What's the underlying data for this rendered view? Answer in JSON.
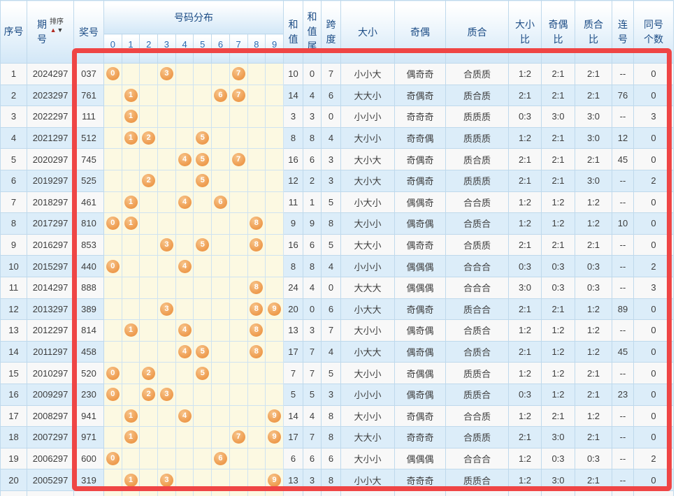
{
  "header": {
    "seq": "序号",
    "period": "期\n号",
    "sort": "排序",
    "sort_up": "▲",
    "sort_down": "▼",
    "prize": "奖号",
    "distribution": "号码分布",
    "digits": [
      "0",
      "1",
      "2",
      "3",
      "4",
      "5",
      "6",
      "7",
      "8",
      "9"
    ],
    "sum": "和\n值",
    "sum_tail": "和\n值\n尾",
    "span": "跨\n度",
    "size": "大小",
    "parity": "奇偶",
    "prime": "质合",
    "size_ratio": "大小\n比",
    "parity_ratio": "奇偶\n比",
    "prime_ratio": "质合\n比",
    "consecutive": "连\n号",
    "same_count": "同号\n个数"
  },
  "colors": {
    "accent_red": "#ef4545",
    "ball_orange": "#efa055",
    "header_blue": "#1c4c85",
    "zebra_blue": "#dcedf9",
    "zebra_white": "#f8f8f8",
    "panel_yellow": "#fcf9e2"
  },
  "rows": [
    {
      "seq": "1",
      "period": "2024297",
      "number": "037",
      "balls": [
        0,
        3,
        7
      ],
      "sum": "10",
      "sum_tail": "0",
      "span": "7",
      "size": "小小大",
      "parity": "偶奇奇",
      "prime": "合质质",
      "size_ratio": "1:2",
      "parity_ratio": "2:1",
      "prime_ratio": "2:1",
      "consecutive": "--",
      "same_count": "0"
    },
    {
      "seq": "2",
      "period": "2023297",
      "number": "761",
      "balls": [
        1,
        6,
        7
      ],
      "sum": "14",
      "sum_tail": "4",
      "span": "6",
      "size": "大大小",
      "parity": "奇偶奇",
      "prime": "质合质",
      "size_ratio": "2:1",
      "parity_ratio": "2:1",
      "prime_ratio": "2:1",
      "consecutive": "76",
      "same_count": "0"
    },
    {
      "seq": "3",
      "period": "2022297",
      "number": "111",
      "balls": [
        1
      ],
      "sum": "3",
      "sum_tail": "3",
      "span": "0",
      "size": "小小小",
      "parity": "奇奇奇",
      "prime": "质质质",
      "size_ratio": "0:3",
      "parity_ratio": "3:0",
      "prime_ratio": "3:0",
      "consecutive": "--",
      "same_count": "3"
    },
    {
      "seq": "4",
      "period": "2021297",
      "number": "512",
      "balls": [
        1,
        2,
        5
      ],
      "sum": "8",
      "sum_tail": "8",
      "span": "4",
      "size": "大小小",
      "parity": "奇奇偶",
      "prime": "质质质",
      "size_ratio": "1:2",
      "parity_ratio": "2:1",
      "prime_ratio": "3:0",
      "consecutive": "12",
      "same_count": "0"
    },
    {
      "seq": "5",
      "period": "2020297",
      "number": "745",
      "balls": [
        4,
        5,
        7
      ],
      "sum": "16",
      "sum_tail": "6",
      "span": "3",
      "size": "大小大",
      "parity": "奇偶奇",
      "prime": "质合质",
      "size_ratio": "2:1",
      "parity_ratio": "2:1",
      "prime_ratio": "2:1",
      "consecutive": "45",
      "same_count": "0"
    },
    {
      "seq": "6",
      "period": "2019297",
      "number": "525",
      "balls": [
        2,
        5
      ],
      "sum": "12",
      "sum_tail": "2",
      "span": "3",
      "size": "大小大",
      "parity": "奇偶奇",
      "prime": "质质质",
      "size_ratio": "2:1",
      "parity_ratio": "2:1",
      "prime_ratio": "3:0",
      "consecutive": "--",
      "same_count": "2"
    },
    {
      "seq": "7",
      "period": "2018297",
      "number": "461",
      "balls": [
        1,
        4,
        6
      ],
      "sum": "11",
      "sum_tail": "1",
      "span": "5",
      "size": "小大小",
      "parity": "偶偶奇",
      "prime": "合合质",
      "size_ratio": "1:2",
      "parity_ratio": "1:2",
      "prime_ratio": "1:2",
      "consecutive": "--",
      "same_count": "0"
    },
    {
      "seq": "8",
      "period": "2017297",
      "number": "810",
      "balls": [
        0,
        1,
        8
      ],
      "sum": "9",
      "sum_tail": "9",
      "span": "8",
      "size": "大小小",
      "parity": "偶奇偶",
      "prime": "合质合",
      "size_ratio": "1:2",
      "parity_ratio": "1:2",
      "prime_ratio": "1:2",
      "consecutive": "10",
      "same_count": "0"
    },
    {
      "seq": "9",
      "period": "2016297",
      "number": "853",
      "balls": [
        3,
        5,
        8
      ],
      "sum": "16",
      "sum_tail": "6",
      "span": "5",
      "size": "大大小",
      "parity": "偶奇奇",
      "prime": "合质质",
      "size_ratio": "2:1",
      "parity_ratio": "2:1",
      "prime_ratio": "2:1",
      "consecutive": "--",
      "same_count": "0"
    },
    {
      "seq": "10",
      "period": "2015297",
      "number": "440",
      "balls": [
        0,
        4
      ],
      "sum": "8",
      "sum_tail": "8",
      "span": "4",
      "size": "小小小",
      "parity": "偶偶偶",
      "prime": "合合合",
      "size_ratio": "0:3",
      "parity_ratio": "0:3",
      "prime_ratio": "0:3",
      "consecutive": "--",
      "same_count": "2"
    },
    {
      "seq": "11",
      "period": "2014297",
      "number": "888",
      "balls": [
        8
      ],
      "sum": "24",
      "sum_tail": "4",
      "span": "0",
      "size": "大大大",
      "parity": "偶偶偶",
      "prime": "合合合",
      "size_ratio": "3:0",
      "parity_ratio": "0:3",
      "prime_ratio": "0:3",
      "consecutive": "--",
      "same_count": "3"
    },
    {
      "seq": "12",
      "period": "2013297",
      "number": "389",
      "balls": [
        3,
        8,
        9
      ],
      "sum": "20",
      "sum_tail": "0",
      "span": "6",
      "size": "小大大",
      "parity": "奇偶奇",
      "prime": "质合合",
      "size_ratio": "2:1",
      "parity_ratio": "2:1",
      "prime_ratio": "1:2",
      "consecutive": "89",
      "same_count": "0"
    },
    {
      "seq": "13",
      "period": "2012297",
      "number": "814",
      "balls": [
        1,
        4,
        8
      ],
      "sum": "13",
      "sum_tail": "3",
      "span": "7",
      "size": "大小小",
      "parity": "偶奇偶",
      "prime": "合质合",
      "size_ratio": "1:2",
      "parity_ratio": "1:2",
      "prime_ratio": "1:2",
      "consecutive": "--",
      "same_count": "0"
    },
    {
      "seq": "14",
      "period": "2011297",
      "number": "458",
      "balls": [
        4,
        5,
        8
      ],
      "sum": "17",
      "sum_tail": "7",
      "span": "4",
      "size": "小大大",
      "parity": "偶奇偶",
      "prime": "合质合",
      "size_ratio": "2:1",
      "parity_ratio": "1:2",
      "prime_ratio": "1:2",
      "consecutive": "45",
      "same_count": "0"
    },
    {
      "seq": "15",
      "period": "2010297",
      "number": "520",
      "balls": [
        0,
        2,
        5
      ],
      "sum": "7",
      "sum_tail": "7",
      "span": "5",
      "size": "大小小",
      "parity": "奇偶偶",
      "prime": "质质合",
      "size_ratio": "1:2",
      "parity_ratio": "1:2",
      "prime_ratio": "2:1",
      "consecutive": "--",
      "same_count": "0"
    },
    {
      "seq": "16",
      "period": "2009297",
      "number": "230",
      "balls": [
        0,
        2,
        3
      ],
      "sum": "5",
      "sum_tail": "5",
      "span": "3",
      "size": "小小小",
      "parity": "偶奇偶",
      "prime": "质质合",
      "size_ratio": "0:3",
      "parity_ratio": "1:2",
      "prime_ratio": "2:1",
      "consecutive": "23",
      "same_count": "0"
    },
    {
      "seq": "17",
      "period": "2008297",
      "number": "941",
      "balls": [
        1,
        4,
        9
      ],
      "sum": "14",
      "sum_tail": "4",
      "span": "8",
      "size": "大小小",
      "parity": "奇偶奇",
      "prime": "合合质",
      "size_ratio": "1:2",
      "parity_ratio": "2:1",
      "prime_ratio": "1:2",
      "consecutive": "--",
      "same_count": "0"
    },
    {
      "seq": "18",
      "period": "2007297",
      "number": "971",
      "balls": [
        1,
        7,
        9
      ],
      "sum": "17",
      "sum_tail": "7",
      "span": "8",
      "size": "大大小",
      "parity": "奇奇奇",
      "prime": "合质质",
      "size_ratio": "2:1",
      "parity_ratio": "3:0",
      "prime_ratio": "2:1",
      "consecutive": "--",
      "same_count": "0"
    },
    {
      "seq": "19",
      "period": "2006297",
      "number": "600",
      "balls": [
        0,
        6
      ],
      "sum": "6",
      "sum_tail": "6",
      "span": "6",
      "size": "大小小",
      "parity": "偶偶偶",
      "prime": "合合合",
      "size_ratio": "1:2",
      "parity_ratio": "0:3",
      "prime_ratio": "0:3",
      "consecutive": "--",
      "same_count": "2"
    },
    {
      "seq": "20",
      "period": "2005297",
      "number": "319",
      "balls": [
        1,
        3,
        9
      ],
      "sum": "13",
      "sum_tail": "3",
      "span": "8",
      "size": "小小大",
      "parity": "奇奇奇",
      "prime": "质质合",
      "size_ratio": "1:2",
      "parity_ratio": "3:0",
      "prime_ratio": "2:1",
      "consecutive": "--",
      "same_count": "0"
    }
  ]
}
